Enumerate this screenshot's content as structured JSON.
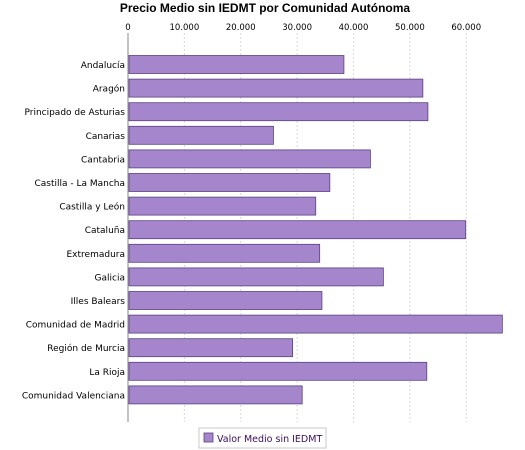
{
  "chart_data": {
    "type": "bar",
    "orientation": "horizontal",
    "title": "Precio Medio sin IEDMT por Comunidad Autónoma",
    "categories": [
      "Andalucía",
      "Aragón",
      "Principado de Asturias",
      "Canarias",
      "Cantabria",
      "Castilla - La Mancha",
      "Castilla y León",
      "Cataluña",
      "Extremadura",
      "Galicia",
      "Illes Balears",
      "Comunidad de Madrid",
      "Región de Murcia",
      "La Rioja",
      "Comunidad Valenciana"
    ],
    "series": [
      {
        "name": "Valor Medio sin IEDMT",
        "values": [
          38300,
          52300,
          53200,
          25800,
          43000,
          35800,
          33300,
          59900,
          34000,
          45300,
          34400,
          66400,
          29200,
          53000,
          30900
        ]
      }
    ],
    "x_ticks": [
      "0",
      "10.000",
      "20.000",
      "30.000",
      "40.000",
      "50.000",
      "60.000"
    ],
    "xlim": [
      0,
      69000
    ],
    "x_axis_position": "top",
    "grid": true,
    "legend_position": "bottom",
    "colors": {
      "bar": "#a585cb",
      "bar_edge": "#5b4280",
      "grid": "#d8d8d8",
      "legend_text": "#3a0f5e"
    }
  }
}
